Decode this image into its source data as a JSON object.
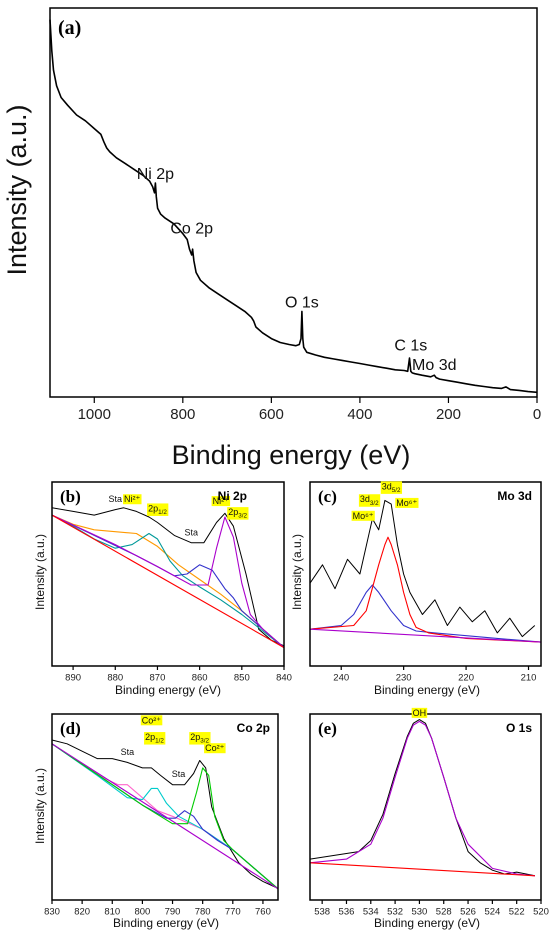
{
  "chart_data": [
    {
      "id": "a",
      "type": "line",
      "panel_label": "(a)",
      "title": "",
      "xlabel": "Binding energy (eV)",
      "ylabel": "Intensity (a.u.)",
      "xlim": [
        1100,
        0
      ],
      "xticks": [
        1000,
        800,
        600,
        400,
        200,
        0
      ],
      "xticklabels": [
        "1000",
        "800",
        "600",
        "400",
        "200",
        "0"
      ],
      "ylim": [
        0,
        100
      ],
      "series": [
        {
          "color": "#000000",
          "x": [
            1100,
            1096,
            1092,
            1085,
            1075,
            1060,
            1040,
            1020,
            1000,
            985,
            978,
            972,
            965,
            950,
            930,
            910,
            890,
            875,
            868,
            864,
            862,
            860,
            857,
            850,
            840,
            820,
            800,
            790,
            785,
            780,
            778,
            775,
            770,
            760,
            740,
            720,
            700,
            680,
            660,
            645,
            640,
            635,
            620,
            600,
            580,
            560,
            545,
            537,
            533,
            531,
            529,
            527,
            520,
            500,
            480,
            460,
            440,
            420,
            400,
            380,
            360,
            340,
            320,
            300,
            292,
            288,
            285,
            282,
            276,
            260,
            240,
            232,
            228,
            220,
            200,
            180,
            160,
            140,
            120,
            100,
            80,
            70,
            60,
            40,
            20,
            0
          ],
          "y": [
            97,
            89,
            84,
            80,
            77,
            75,
            72.5,
            71,
            69,
            67.5,
            65.5,
            64,
            63,
            61.5,
            60,
            58.5,
            57,
            55.5,
            54,
            52.5,
            55,
            51.5,
            48.5,
            47,
            46,
            44.5,
            42,
            40.5,
            38,
            36.5,
            38,
            35,
            32,
            30,
            28,
            26.5,
            25,
            23.5,
            22,
            20.5,
            19.5,
            18,
            16.5,
            15,
            14,
            13.5,
            13.2,
            13.5,
            15,
            22,
            15,
            12.8,
            11.5,
            10.8,
            10.2,
            9.8,
            9.4,
            9,
            8.6,
            8.2,
            7.8,
            7.4,
            7,
            6.8,
            6.6,
            10,
            6.6,
            6.2,
            6,
            5.6,
            5.2,
            5.6,
            5,
            4.6,
            4.2,
            3.8,
            3.4,
            3,
            2.7,
            2.4,
            2.2,
            2.6,
            1.9,
            1.7,
            1.4,
            1.2
          ]
        }
      ],
      "annotations": [
        {
          "text": "Ni 2p",
          "x": 862,
          "y": 56
        },
        {
          "text": "Co 2p",
          "x": 780,
          "y": 42
        },
        {
          "text": "O 1s",
          "x": 531,
          "y": 23
        },
        {
          "text": "C 1s",
          "x": 285,
          "y": 12
        },
        {
          "text": "Mo 3d",
          "x": 232,
          "y": 7
        }
      ]
    },
    {
      "id": "b",
      "type": "line",
      "panel_label": "(b)",
      "title": "Ni 2p",
      "xlabel": "Binding energy (eV)",
      "ylabel": "Intensity (a.u.)",
      "xlim": [
        895,
        840
      ],
      "xticks": [
        890,
        880,
        870,
        860,
        850,
        840
      ],
      "xticklabels": [
        "890",
        "880",
        "870",
        "860",
        "850",
        "840"
      ],
      "ylim": [
        0,
        100
      ],
      "series": [
        {
          "color": "#000000",
          "x": [
            895,
            890,
            885,
            880,
            878,
            875,
            872,
            870,
            866,
            862,
            859,
            856,
            854,
            852,
            849,
            846,
            843,
            840
          ],
          "y": [
            86,
            84,
            82,
            85,
            86,
            84,
            81,
            78,
            71,
            67,
            67,
            78,
            83,
            76,
            50,
            20,
            14,
            11
          ]
        },
        {
          "color": "#ff9900",
          "x": [
            895,
            890,
            885,
            880,
            875,
            870,
            865,
            860,
            855,
            850,
            845,
            840
          ],
          "y": [
            82,
            77,
            74,
            73,
            72,
            65,
            55,
            47,
            39,
            30,
            20,
            10
          ]
        },
        {
          "color": "#009999",
          "x": [
            895,
            890,
            885,
            880,
            876,
            872,
            870,
            867,
            864,
            860,
            855,
            850,
            845,
            840
          ],
          "y": [
            82,
            76,
            69,
            64,
            66,
            72,
            69,
            57,
            49,
            43,
            36,
            28,
            19,
            10
          ]
        },
        {
          "color": "#3333cc",
          "x": [
            895,
            885,
            875,
            870,
            866,
            863,
            860,
            857,
            854,
            852,
            850,
            845,
            840
          ],
          "y": [
            82,
            71,
            60,
            54,
            49,
            50,
            55,
            52,
            42,
            37,
            30,
            20,
            10
          ]
        },
        {
          "color": "#aa00cc",
          "x": [
            895,
            880,
            870,
            862,
            858,
            856,
            854,
            852,
            850,
            848,
            845,
            840
          ],
          "y": [
            82,
            66,
            54,
            44,
            44,
            64,
            81,
            70,
            45,
            28,
            20,
            10
          ]
        },
        {
          "color": "#ff0000",
          "x": [
            895,
            840
          ],
          "y": [
            82,
            10
          ]
        }
      ],
      "annotations": [
        {
          "text": "Sta",
          "x": 880,
          "y": 89
        },
        {
          "text": "Ni²⁺",
          "x": 876,
          "y": 89
        },
        {
          "text": "2p1/2",
          "x": 870,
          "y": 84
        },
        {
          "text": "Sta",
          "x": 862,
          "y": 71
        },
        {
          "text": "Ni²⁺",
          "x": 855,
          "y": 88
        },
        {
          "text": "2p3/2",
          "x": 851,
          "y": 82
        }
      ]
    },
    {
      "id": "c",
      "type": "line",
      "panel_label": "(c)",
      "title": "Mo 3d",
      "xlabel": "Binding energy (eV)",
      "ylabel": "Intensity (a.u.)",
      "xlim": [
        245,
        208
      ],
      "xticks": [
        240,
        230,
        220,
        210
      ],
      "xticklabels": [
        "240",
        "230",
        "220",
        "210"
      ],
      "ylim": [
        0,
        100
      ],
      "series": [
        {
          "color": "#000000",
          "x": [
            245,
            243,
            241,
            239,
            237,
            235,
            234,
            233,
            232,
            231,
            230,
            229,
            227,
            225,
            223,
            221,
            219,
            217,
            215,
            213,
            211,
            209
          ],
          "y": [
            45,
            55,
            42,
            58,
            50,
            80,
            74,
            90,
            88,
            66,
            50,
            40,
            28,
            36,
            22,
            32,
            24,
            30,
            18,
            26,
            16,
            22
          ]
        },
        {
          "color": "#3333cc",
          "x": [
            245,
            240,
            238,
            236,
            235,
            234,
            232,
            230,
            228,
            225,
            215,
            208
          ],
          "y": [
            20,
            22,
            28,
            40,
            44,
            40,
            30,
            22,
            19,
            18,
            15,
            13
          ]
        },
        {
          "color": "#ff0000",
          "x": [
            245,
            238,
            236,
            234,
            233,
            232.5,
            232,
            231,
            230,
            229,
            228,
            226,
            220,
            208
          ],
          "y": [
            20,
            22,
            30,
            55,
            66,
            70,
            66,
            55,
            40,
            28,
            21,
            18,
            15,
            13
          ]
        },
        {
          "color": "#aa00cc",
          "x": [
            245,
            208
          ],
          "y": [
            20,
            13
          ]
        }
      ],
      "annotations": [
        {
          "text": "3d3/2",
          "x": 235.5,
          "y": 89
        },
        {
          "text": "Mo⁶⁺",
          "x": 236.5,
          "y": 80
        },
        {
          "text": "3d5/2",
          "x": 232,
          "y": 96
        },
        {
          "text": "Mo⁶⁺",
          "x": 229.5,
          "y": 87
        }
      ]
    },
    {
      "id": "d",
      "type": "line",
      "panel_label": "(d)",
      "title": "Co 2p",
      "xlabel": "Binding energy (eV)",
      "ylabel": "Intensity (a.u.)",
      "xlim": [
        830,
        755
      ],
      "xticks": [
        830,
        820,
        810,
        800,
        790,
        780,
        770,
        760
      ],
      "xticklabels": [
        "830",
        "820",
        "810",
        "800",
        "790",
        "780",
        "770",
        "760"
      ],
      "ylim": [
        0,
        100
      ],
      "series": [
        {
          "color": "#000000",
          "x": [
            830,
            825,
            820,
            815,
            810,
            805,
            800,
            797,
            794,
            790,
            786,
            783,
            781,
            779,
            777,
            773,
            768,
            764,
            760,
            756
          ],
          "y": [
            86,
            84,
            80,
            76,
            76,
            74,
            71,
            71,
            67,
            62,
            62,
            68,
            75,
            71,
            50,
            33,
            20,
            14,
            10,
            7
          ]
        },
        {
          "color": "#ff66cc",
          "x": [
            830,
            820,
            812,
            808,
            805,
            800,
            795,
            790,
            780,
            770,
            760,
            755
          ],
          "y": [
            84,
            73,
            65,
            62,
            62,
            55,
            48,
            45,
            38,
            27,
            13,
            6
          ]
        },
        {
          "color": "#00cccc",
          "x": [
            830,
            815,
            805,
            800,
            797,
            795,
            792,
            788,
            780,
            770,
            760,
            755
          ],
          "y": [
            84,
            67,
            55,
            54,
            60,
            60,
            52,
            45,
            38,
            27,
            13,
            6
          ]
        },
        {
          "color": "#3333cc",
          "x": [
            830,
            810,
            800,
            792,
            789,
            786,
            783,
            780,
            775,
            770,
            760,
            755
          ],
          "y": [
            84,
            62,
            51,
            44,
            44,
            48,
            45,
            38,
            32,
            27,
            13,
            6
          ]
        },
        {
          "color": "#00cc00",
          "x": [
            830,
            800,
            790,
            785,
            782,
            780,
            778,
            776,
            773,
            770,
            760,
            755
          ],
          "y": [
            84,
            51,
            41,
            41,
            58,
            71,
            67,
            45,
            32,
            27,
            13,
            6
          ]
        },
        {
          "color": "#aa00cc",
          "x": [
            830,
            755
          ],
          "y": [
            84,
            6
          ]
        }
      ],
      "annotations": [
        {
          "text": "Sta",
          "x": 805,
          "y": 78
        },
        {
          "text": "Co²⁺",
          "x": 797,
          "y": 95
        },
        {
          "text": "2p1/2",
          "x": 796,
          "y": 86
        },
        {
          "text": "Sta",
          "x": 788,
          "y": 66
        },
        {
          "text": "2p3/2",
          "x": 781,
          "y": 86
        },
        {
          "text": "Co²⁺",
          "x": 776,
          "y": 80
        }
      ]
    },
    {
      "id": "e",
      "type": "line",
      "panel_label": "(e)",
      "title": "O 1s",
      "xlabel": "Binding energy (eV)",
      "ylabel": "",
      "xlim": [
        539,
        520
      ],
      "xticks": [
        538,
        536,
        534,
        532,
        530,
        528,
        526,
        524,
        522,
        520
      ],
      "xticklabels": [
        "538",
        "536",
        "534",
        "532",
        "530",
        "528",
        "526",
        "524",
        "522",
        "520"
      ],
      "ylim": [
        0,
        100
      ],
      "series": [
        {
          "color": "#000000",
          "x": [
            539,
            537,
            535,
            534,
            533,
            532,
            531,
            530.5,
            530,
            529.5,
            529,
            528,
            527,
            526,
            525,
            524,
            523,
            522,
            520.5
          ],
          "y": [
            22,
            24,
            26,
            32,
            46,
            68,
            88,
            95,
            97,
            95,
            87,
            66,
            44,
            26,
            20,
            16,
            14,
            15,
            13
          ]
        },
        {
          "color": "#aa00cc",
          "x": [
            539,
            536,
            534,
            533,
            532,
            531,
            530.5,
            530,
            529.5,
            529,
            528,
            527,
            526,
            524,
            522,
            520.5
          ],
          "y": [
            20,
            22,
            30,
            44,
            66,
            87,
            94,
            96,
            94,
            87,
            66,
            44,
            30,
            17,
            14,
            13
          ]
        },
        {
          "color": "#ff0000",
          "x": [
            539,
            520.5
          ],
          "y": [
            20,
            13
          ]
        }
      ],
      "annotations": [
        {
          "text": "OH",
          "x": 530,
          "y": 99
        }
      ]
    }
  ]
}
